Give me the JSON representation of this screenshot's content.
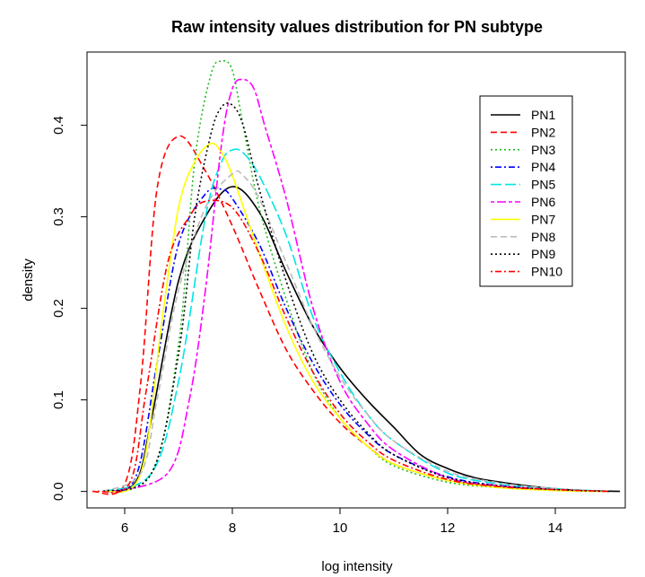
{
  "chart_data": {
    "type": "line",
    "title": "Raw intensity values distribution for PN subtype",
    "xlabel": "log intensity",
    "ylabel": "density",
    "xlim": [
      5.3,
      15.3
    ],
    "ylim": [
      -0.018,
      0.48
    ],
    "xticks": [
      6,
      8,
      10,
      12,
      14
    ],
    "yticks": [
      0.0,
      0.1,
      0.2,
      0.3,
      0.4
    ],
    "grid": false,
    "legend_position": "top-right",
    "series": [
      {
        "name": "PN1",
        "color": "#000000",
        "dash": "solid",
        "x": [
          5.6,
          6.2,
          6.5,
          7.0,
          7.5,
          8.0,
          8.5,
          9.0,
          9.5,
          10.0,
          10.5,
          11.0,
          11.5,
          12.0,
          12.5,
          13.0,
          13.5,
          14.0,
          14.5,
          15.2
        ],
        "y": [
          0.0,
          0.01,
          0.08,
          0.23,
          0.3,
          0.333,
          0.305,
          0.24,
          0.18,
          0.135,
          0.1,
          0.07,
          0.04,
          0.025,
          0.015,
          0.01,
          0.006,
          0.003,
          0.001,
          0.0
        ]
      },
      {
        "name": "PN2",
        "color": "#ff0000",
        "dash": "dashed",
        "x": [
          5.4,
          6.0,
          6.3,
          6.6,
          7.0,
          7.5,
          8.0,
          8.5,
          9.0,
          9.5,
          10.0,
          10.5,
          11.0,
          12.0,
          13.0,
          14.0,
          15.0
        ],
        "y": [
          0.0,
          0.008,
          0.12,
          0.33,
          0.388,
          0.35,
          0.29,
          0.22,
          0.155,
          0.11,
          0.075,
          0.05,
          0.03,
          0.012,
          0.005,
          0.002,
          0.0
        ]
      },
      {
        "name": "PN3",
        "color": "#22bb22",
        "dash": "dotted",
        "x": [
          5.6,
          6.5,
          7.0,
          7.3,
          7.6,
          7.8,
          8.0,
          8.2,
          8.5,
          9.0,
          9.5,
          10.0,
          10.5,
          11.0,
          12.0,
          13.0,
          14.0,
          15.0
        ],
        "y": [
          0.0,
          0.02,
          0.16,
          0.36,
          0.455,
          0.47,
          0.46,
          0.4,
          0.31,
          0.21,
          0.13,
          0.08,
          0.05,
          0.028,
          0.01,
          0.004,
          0.001,
          0.0
        ]
      },
      {
        "name": "PN4",
        "color": "#0000ff",
        "dash": "dotdash",
        "x": [
          5.6,
          6.2,
          6.6,
          7.0,
          7.5,
          7.8,
          8.0,
          8.5,
          9.0,
          9.5,
          10.0,
          10.5,
          11.0,
          12.0,
          13.0,
          14.0,
          15.0
        ],
        "y": [
          0.0,
          0.015,
          0.14,
          0.27,
          0.325,
          0.33,
          0.32,
          0.27,
          0.2,
          0.14,
          0.095,
          0.063,
          0.04,
          0.016,
          0.006,
          0.002,
          0.0
        ]
      },
      {
        "name": "PN5",
        "color": "#00e5e5",
        "dash": "longdash",
        "x": [
          5.6,
          6.5,
          7.0,
          7.5,
          7.8,
          8.0,
          8.2,
          8.5,
          9.0,
          9.5,
          10.0,
          10.5,
          11.0,
          12.0,
          13.0,
          14.0,
          15.0
        ],
        "y": [
          0.0,
          0.02,
          0.12,
          0.3,
          0.36,
          0.373,
          0.37,
          0.345,
          0.28,
          0.19,
          0.13,
          0.085,
          0.055,
          0.02,
          0.008,
          0.003,
          0.0
        ]
      },
      {
        "name": "PN6",
        "color": "#ff00ff",
        "dash": "twodash",
        "x": [
          5.8,
          6.8,
          7.2,
          7.5,
          7.8,
          8.0,
          8.2,
          8.4,
          8.6,
          9.0,
          9.5,
          10.0,
          10.5,
          11.0,
          12.0,
          13.0,
          14.0,
          15.0
        ],
        "y": [
          0.0,
          0.02,
          0.1,
          0.22,
          0.38,
          0.44,
          0.45,
          0.44,
          0.4,
          0.32,
          0.2,
          0.12,
          0.075,
          0.045,
          0.015,
          0.006,
          0.002,
          0.0
        ]
      },
      {
        "name": "PN7",
        "color": "#ffff00",
        "dash": "solid",
        "x": [
          5.6,
          6.3,
          6.7,
          7.0,
          7.3,
          7.6,
          7.8,
          8.0,
          8.5,
          9.0,
          9.5,
          10.0,
          10.5,
          11.0,
          12.0,
          13.0,
          14.0,
          15.0
        ],
        "y": [
          0.0,
          0.02,
          0.19,
          0.31,
          0.36,
          0.38,
          0.37,
          0.345,
          0.26,
          0.18,
          0.12,
          0.08,
          0.05,
          0.03,
          0.012,
          0.004,
          0.001,
          0.0
        ]
      },
      {
        "name": "PN8",
        "color": "#bbbbbb",
        "dash": "dashed",
        "x": [
          5.6,
          6.3,
          6.6,
          7.0,
          7.5,
          8.0,
          8.2,
          8.5,
          9.0,
          9.5,
          10.0,
          10.5,
          11.0,
          12.0,
          13.0,
          14.0,
          15.0
        ],
        "y": [
          0.0,
          0.02,
          0.1,
          0.22,
          0.31,
          0.347,
          0.345,
          0.32,
          0.25,
          0.18,
          0.125,
          0.085,
          0.055,
          0.022,
          0.009,
          0.003,
          0.0
        ]
      },
      {
        "name": "PN9",
        "color": "#000000",
        "dash": "dotted",
        "x": [
          5.6,
          6.5,
          7.0,
          7.3,
          7.6,
          7.8,
          8.0,
          8.2,
          8.5,
          9.0,
          9.5,
          10.0,
          10.5,
          11.0,
          12.0,
          13.0,
          14.0,
          15.0
        ],
        "y": [
          0.0,
          0.02,
          0.15,
          0.3,
          0.39,
          0.42,
          0.422,
          0.4,
          0.33,
          0.23,
          0.15,
          0.1,
          0.065,
          0.04,
          0.015,
          0.006,
          0.002,
          0.0
        ]
      },
      {
        "name": "PN10",
        "color": "#ff0000",
        "dash": "dotdash",
        "x": [
          5.5,
          6.1,
          6.4,
          6.8,
          7.2,
          7.5,
          8.0,
          8.5,
          9.0,
          9.5,
          10.0,
          10.5,
          11.0,
          12.0,
          13.0,
          14.0,
          15.0
        ],
        "y": [
          0.0,
          0.01,
          0.11,
          0.25,
          0.3,
          0.317,
          0.31,
          0.26,
          0.19,
          0.13,
          0.085,
          0.055,
          0.034,
          0.013,
          0.005,
          0.002,
          0.0
        ]
      }
    ]
  }
}
